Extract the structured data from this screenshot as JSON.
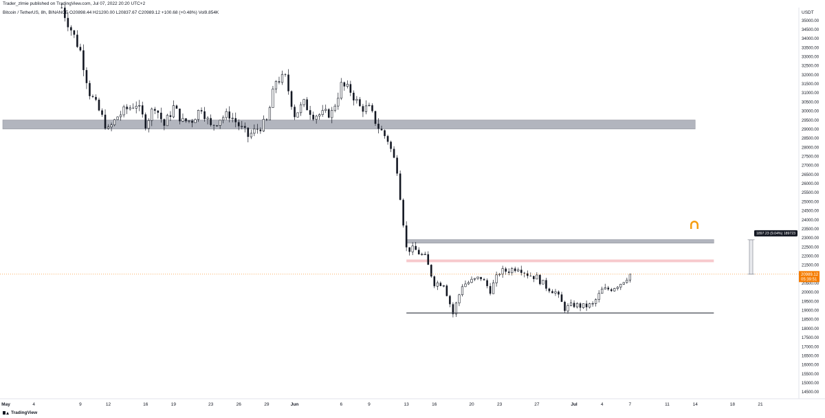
{
  "header": {
    "publisher": "Trader_zlmie published on TradingView.com, Jul 07, 2022 20:20 UTC+2",
    "legend": "Bitcoin / TetherUS, 8h, BINANCE  O20898.44  H21200.00  L20837.67  C20989.12  +100.68 (+0.48%)  Vol9.854K"
  },
  "footer": {
    "brand": "TradingView"
  },
  "colors": {
    "candle": "#131722",
    "zone_gray": "#b2b5be",
    "zone_pink": "#f7c9cc",
    "support_line": "#434651",
    "price_line": "#f57c00",
    "price_tag": "#f57c00",
    "measure_tag": "#131722",
    "logo": "#f59d0f"
  },
  "icons": {
    "logo": "horseshoe-logo-icon",
    "brand": "tradingview-logo-icon"
  },
  "chart_data": {
    "type": "candlestick",
    "symbol": "Bitcoin / TetherUS",
    "interval": "8h",
    "exchange": "BINANCE",
    "ohlc_last": {
      "open": 20898.44,
      "high": 21200.0,
      "low": 20837.67,
      "close": 20989.12,
      "change": 100.68,
      "change_pct": 0.48,
      "volume": "9.854K"
    },
    "y_axis": {
      "unit": "USDT",
      "range": [
        14200,
        35700
      ],
      "ticks": [
        "35000.00",
        "34500.00",
        "34000.00",
        "33500.00",
        "33000.00",
        "32500.00",
        "32000.00",
        "31500.00",
        "31000.00",
        "30500.00",
        "30000.00",
        "29500.00",
        "29000.00",
        "28500.00",
        "28000.00",
        "27500.00",
        "27000.00",
        "26500.00",
        "26000.00",
        "25500.00",
        "25000.00",
        "24500.00",
        "24000.00",
        "23500.00",
        "23000.00",
        "22500.00",
        "22000.00",
        "21500.00",
        "21000.00",
        "20500.00",
        "20000.00",
        "19500.00",
        "19000.00",
        "18500.00",
        "18000.00",
        "17500.00",
        "17000.00",
        "16500.00",
        "16000.00",
        "15500.00",
        "15000.00",
        "14500.00"
      ]
    },
    "x_axis": {
      "labels": [
        {
          "label": "May",
          "date": "2022-05-01"
        },
        {
          "label": "4",
          "date": "2022-05-04"
        },
        {
          "label": "9",
          "date": "2022-05-09"
        },
        {
          "label": "12",
          "date": "2022-05-12"
        },
        {
          "label": "16",
          "date": "2022-05-16"
        },
        {
          "label": "19",
          "date": "2022-05-19"
        },
        {
          "label": "23",
          "date": "2022-05-23"
        },
        {
          "label": "26",
          "date": "2022-05-26"
        },
        {
          "label": "29",
          "date": "2022-05-29"
        },
        {
          "label": "Jun",
          "date": "2022-06-01"
        },
        {
          "label": "6",
          "date": "2022-06-06"
        },
        {
          "label": "9",
          "date": "2022-06-09"
        },
        {
          "label": "13",
          "date": "2022-06-13"
        },
        {
          "label": "16",
          "date": "2022-06-16"
        },
        {
          "label": "20",
          "date": "2022-06-20"
        },
        {
          "label": "23",
          "date": "2022-06-23"
        },
        {
          "label": "27",
          "date": "2022-06-27"
        },
        {
          "label": "Jul",
          "date": "2022-07-01"
        },
        {
          "label": "4",
          "date": "2022-07-04"
        },
        {
          "label": "7",
          "date": "2022-07-07"
        },
        {
          "label": "11",
          "date": "2022-07-11"
        },
        {
          "label": "14",
          "date": "2022-07-14"
        },
        {
          "label": "18",
          "date": "2022-07-18"
        },
        {
          "label": "21",
          "date": "2022-07-21"
        }
      ]
    },
    "price_path": [
      {
        "date": "2022-05-07",
        "price": 35700
      },
      {
        "date": "2022-05-08",
        "price": 34500
      },
      {
        "date": "2022-05-09",
        "price": 33300
      },
      {
        "date": "2022-05-10",
        "price": 31000
      },
      {
        "date": "2022-05-11",
        "price": 30000
      },
      {
        "date": "2022-05-12",
        "price": 28900
      },
      {
        "date": "2022-05-13",
        "price": 29700
      },
      {
        "date": "2022-05-14",
        "price": 30100
      },
      {
        "date": "2022-05-15",
        "price": 30400
      },
      {
        "date": "2022-05-16",
        "price": 29300
      },
      {
        "date": "2022-05-17",
        "price": 30300
      },
      {
        "date": "2022-05-18",
        "price": 29200
      },
      {
        "date": "2022-05-19",
        "price": 30200
      },
      {
        "date": "2022-05-20",
        "price": 29400
      },
      {
        "date": "2022-05-21",
        "price": 29500
      },
      {
        "date": "2022-05-22",
        "price": 30200
      },
      {
        "date": "2022-05-23",
        "price": 29100
      },
      {
        "date": "2022-05-24",
        "price": 29600
      },
      {
        "date": "2022-05-25",
        "price": 29800
      },
      {
        "date": "2022-05-26",
        "price": 29200
      },
      {
        "date": "2022-05-27",
        "price": 28600
      },
      {
        "date": "2022-05-28",
        "price": 29000
      },
      {
        "date": "2022-05-29",
        "price": 29400
      },
      {
        "date": "2022-05-30",
        "price": 31700
      },
      {
        "date": "2022-05-31",
        "price": 31800
      },
      {
        "date": "2022-06-01",
        "price": 29800
      },
      {
        "date": "2022-06-02",
        "price": 30400
      },
      {
        "date": "2022-06-03",
        "price": 29800
      },
      {
        "date": "2022-06-04",
        "price": 29800
      },
      {
        "date": "2022-06-05",
        "price": 29900
      },
      {
        "date": "2022-06-06",
        "price": 31400
      },
      {
        "date": "2022-06-07",
        "price": 31100
      },
      {
        "date": "2022-06-08",
        "price": 30200
      },
      {
        "date": "2022-06-09",
        "price": 30100
      },
      {
        "date": "2022-06-10",
        "price": 29100
      },
      {
        "date": "2022-06-11",
        "price": 28400
      },
      {
        "date": "2022-06-12",
        "price": 26800
      },
      {
        "date": "2022-06-13",
        "price": 22400
      },
      {
        "date": "2022-06-14",
        "price": 22300
      },
      {
        "date": "2022-06-15",
        "price": 21900
      },
      {
        "date": "2022-06-16",
        "price": 20500
      },
      {
        "date": "2022-06-17",
        "price": 20500
      },
      {
        "date": "2022-06-18",
        "price": 18800
      },
      {
        "date": "2022-06-19",
        "price": 20400
      },
      {
        "date": "2022-06-20",
        "price": 20600
      },
      {
        "date": "2022-06-21",
        "price": 20800
      },
      {
        "date": "2022-06-22",
        "price": 20100
      },
      {
        "date": "2022-06-23",
        "price": 21100
      },
      {
        "date": "2022-06-24",
        "price": 21200
      },
      {
        "date": "2022-06-25",
        "price": 21400
      },
      {
        "date": "2022-06-26",
        "price": 21000
      },
      {
        "date": "2022-06-27",
        "price": 20800
      },
      {
        "date": "2022-06-28",
        "price": 20300
      },
      {
        "date": "2022-06-29",
        "price": 20000
      },
      {
        "date": "2022-06-30",
        "price": 19100
      },
      {
        "date": "2022-07-01",
        "price": 19300
      },
      {
        "date": "2022-07-02",
        "price": 19200
      },
      {
        "date": "2022-07-03",
        "price": 19300
      },
      {
        "date": "2022-07-04",
        "price": 20100
      },
      {
        "date": "2022-07-05",
        "price": 20200
      },
      {
        "date": "2022-07-06",
        "price": 20500
      },
      {
        "date": "2022-07-07",
        "price": 20989
      }
    ],
    "zones": [
      {
        "type": "resistance",
        "from": 29000,
        "to": 29500,
        "start": "2022-05-01",
        "end": "2022-07-14",
        "color": "#b2b5be"
      },
      {
        "type": "resistance",
        "from": 22700,
        "to": 22900,
        "start": "2022-06-13",
        "end": "2022-07-16",
        "color": "#b2b5be"
      },
      {
        "type": "resistance",
        "from": 21650,
        "to": 21800,
        "start": "2022-06-13",
        "end": "2022-07-16",
        "color": "#f7c9cc"
      }
    ],
    "lines": [
      {
        "type": "support",
        "price": 18850,
        "start": "2022-06-13",
        "end": "2022-07-16"
      },
      {
        "type": "last-price",
        "price": 20989.12
      }
    ],
    "price_labels": {
      "last": "20989.12",
      "countdown": "05:39:51"
    },
    "measure": {
      "label": "1897.23 (9.04%) 189723",
      "from": 20989,
      "to": 22886,
      "date": "2022-07-20"
    },
    "grid": false,
    "legend": "top-left"
  }
}
